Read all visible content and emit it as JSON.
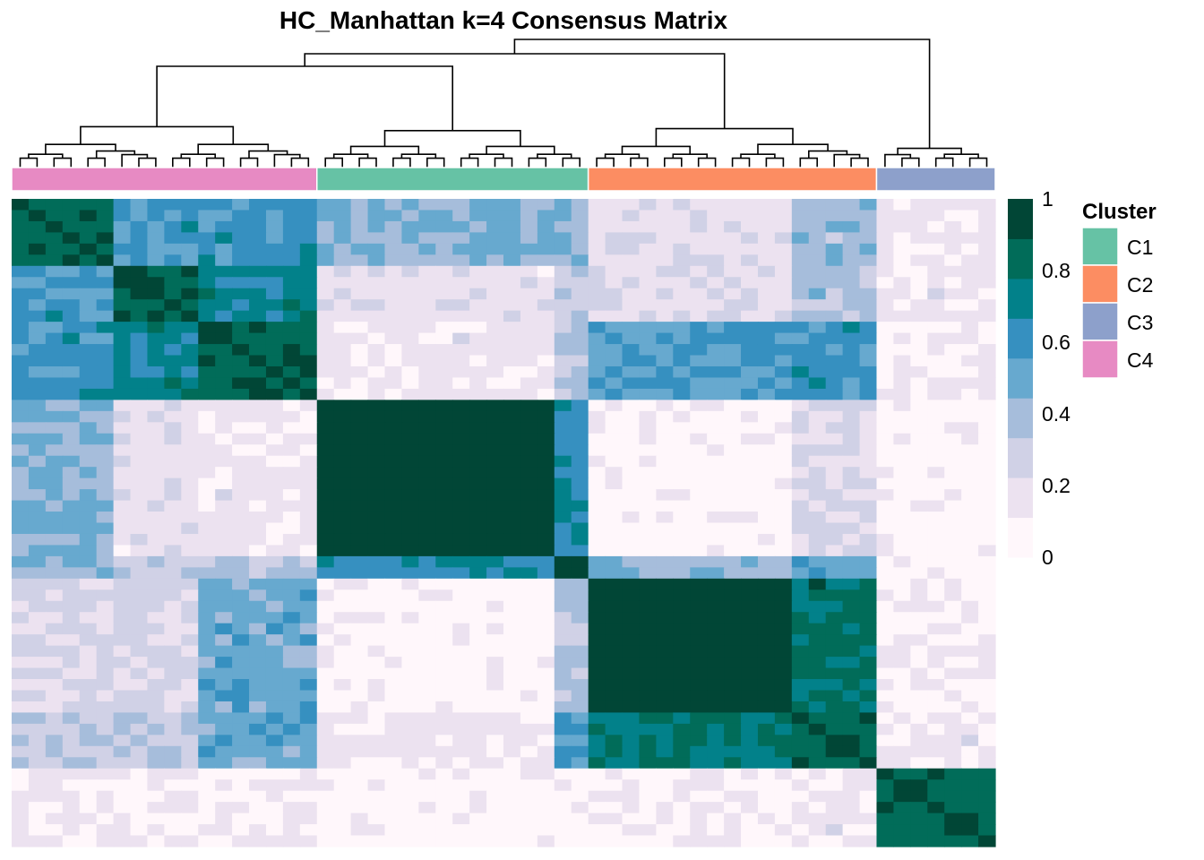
{
  "chart_data": {
    "type": "heatmap",
    "title": "HC_Manhattan k=4 Consensus Matrix",
    "xlabel": "",
    "ylabel": "",
    "value_range": [
      0,
      1
    ],
    "n_samples": 58,
    "sample_cluster_order": [
      "C4",
      "C4",
      "C4",
      "C4",
      "C4",
      "C4",
      "C4",
      "C4",
      "C4",
      "C4",
      "C4",
      "C4",
      "C4",
      "C4",
      "C4",
      "C4",
      "C4",
      "C4",
      "C1",
      "C1",
      "C1",
      "C1",
      "C1",
      "C1",
      "C1",
      "C1",
      "C1",
      "C1",
      "C1",
      "C1",
      "C1",
      "C1",
      "C1",
      "C1",
      "C2",
      "C2",
      "C2",
      "C2",
      "C2",
      "C2",
      "C2",
      "C2",
      "C2",
      "C2",
      "C2",
      "C2",
      "C2",
      "C2",
      "C2",
      "C2",
      "C2",
      "C3",
      "C3",
      "C3",
      "C3",
      "C3",
      "C3",
      "C3"
    ],
    "block_values_approx": {
      "rows_order": [
        "C4a",
        "C4b",
        "C4c",
        "C1",
        "C1tail",
        "C2",
        "C2tail",
        "C3"
      ],
      "matrix": [
        [
          0.9,
          0.6,
          0.6,
          0.45,
          0.4,
          0.15,
          0.4,
          0.1
        ],
        [
          0.6,
          0.92,
          0.75,
          0.15,
          0.3,
          0.15,
          0.35,
          0.1
        ],
        [
          0.6,
          0.75,
          0.9,
          0.1,
          0.35,
          0.55,
          0.6,
          0.05
        ],
        [
          0.45,
          0.15,
          0.1,
          1.0,
          0.65,
          0.0,
          0.2,
          0.0
        ],
        [
          0.4,
          0.3,
          0.35,
          0.65,
          1.0,
          0.4,
          0.5,
          0.0
        ],
        [
          0.2,
          0.2,
          0.5,
          0.0,
          0.35,
          1.0,
          0.85,
          0.05
        ],
        [
          0.3,
          0.3,
          0.5,
          0.1,
          0.55,
          0.82,
          0.92,
          0.1
        ],
        [
          0.08,
          0.08,
          0.05,
          0.0,
          0.0,
          0.05,
          0.1,
          0.9
        ]
      ]
    },
    "legend_colorbar": {
      "ticks": [
        "0",
        "0.2",
        "0.4",
        "0.6",
        "0.8",
        "1"
      ],
      "colors": [
        "#FFF7FB",
        "#ECE2F0",
        "#D0D1E6",
        "#A6BDDB",
        "#67A9CF",
        "#3690C0",
        "#02818A",
        "#016C59",
        "#014636"
      ]
    },
    "legend_cluster": {
      "title": "Cluster",
      "items": [
        {
          "label": "C1",
          "color": "#66C2A5"
        },
        {
          "label": "C2",
          "color": "#FC8D62"
        },
        {
          "label": "C3",
          "color": "#8DA0CB"
        },
        {
          "label": "C4",
          "color": "#E78AC3"
        }
      ]
    }
  }
}
